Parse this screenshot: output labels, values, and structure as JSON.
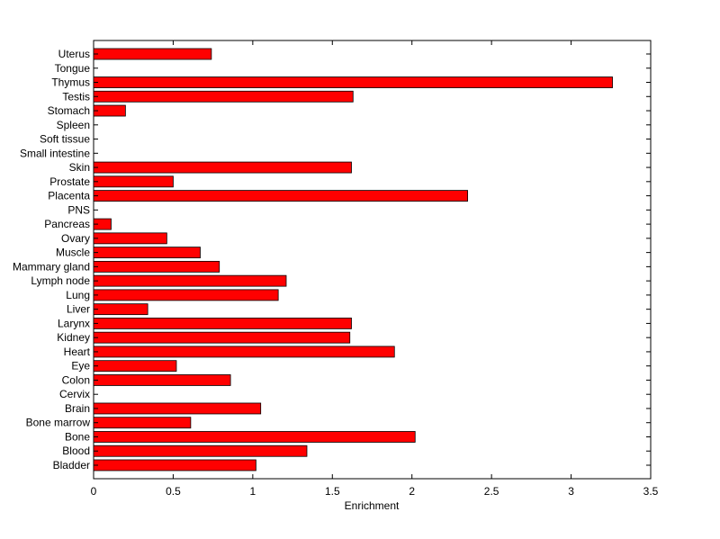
{
  "chart_data": {
    "type": "bar",
    "orientation": "horizontal",
    "title": "",
    "xlabel": "Enrichment",
    "ylabel": "",
    "xlim": [
      0,
      3.5
    ],
    "xticks": [
      "0",
      "0.5",
      "1",
      "1.5",
      "2",
      "2.5",
      "3",
      "3.5"
    ],
    "grid": false,
    "legend": "none",
    "bar_color": "#ff0000",
    "categories": [
      "Bladder",
      "Blood",
      "Bone",
      "Bone marrow",
      "Brain",
      "Cervix",
      "Colon",
      "Eye",
      "Heart",
      "Kidney",
      "Larynx",
      "Liver",
      "Lung",
      "Lymph node",
      "Mammary gland",
      "Muscle",
      "Ovary",
      "Pancreas",
      "PNS",
      "Placenta",
      "Prostate",
      "Skin",
      "Small intestine",
      "Soft tissue",
      "Spleen",
      "Stomach",
      "Testis",
      "Thymus",
      "Tongue",
      "Uterus"
    ],
    "values": [
      1.02,
      1.34,
      2.02,
      0.61,
      1.05,
      0,
      0.86,
      0.52,
      1.89,
      1.61,
      1.62,
      0.34,
      1.16,
      1.21,
      0.79,
      0.67,
      0.46,
      0.11,
      0,
      2.35,
      0.5,
      1.62,
      0,
      0,
      0,
      0.2,
      1.63,
      3.26,
      0,
      0.74
    ]
  }
}
